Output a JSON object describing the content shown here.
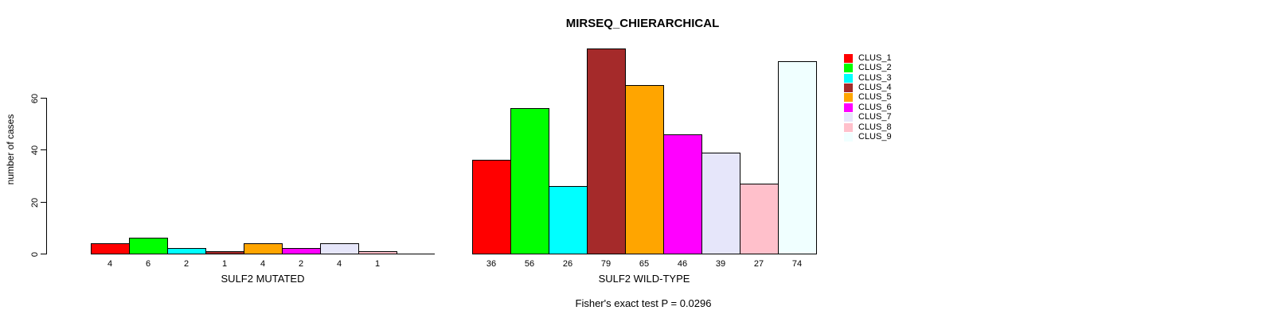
{
  "chart_data": {
    "type": "bar",
    "title": "MIRSEQ_CHIERARCHICAL",
    "ylabel": "number of cases",
    "yticks": [
      0,
      20,
      40,
      60
    ],
    "ylim": [
      0,
      80
    ],
    "grid": false,
    "legend_position": "right",
    "categories": [
      "CLUS_1",
      "CLUS_2",
      "CLUS_3",
      "CLUS_4",
      "CLUS_5",
      "CLUS_6",
      "CLUS_7",
      "CLUS_8",
      "CLUS_9"
    ],
    "colors": [
      "#FF0000",
      "#00FF00",
      "#00FFFF",
      "#A52A2A",
      "#FFA500",
      "#FF00FF",
      "#E6E6FA",
      "#FFC0CB",
      "#F0FFFF"
    ],
    "bar_border_color": "#000000",
    "groups": [
      {
        "label": "SULF2 MUTATED",
        "values": [
          4,
          6,
          2,
          1,
          4,
          2,
          4,
          1,
          0
        ],
        "bar_labels": [
          "4",
          "6",
          "2",
          "1",
          "4",
          "2",
          "4",
          "1",
          ""
        ]
      },
      {
        "label": "SULF2 WILD-TYPE",
        "values": [
          36,
          56,
          26,
          79,
          65,
          46,
          39,
          27,
          74
        ],
        "bar_labels": [
          "36",
          "56",
          "26",
          "79",
          "65",
          "46",
          "39",
          "27",
          "74"
        ]
      }
    ],
    "footnote": "Fisher's exact test P = 0.0296"
  }
}
